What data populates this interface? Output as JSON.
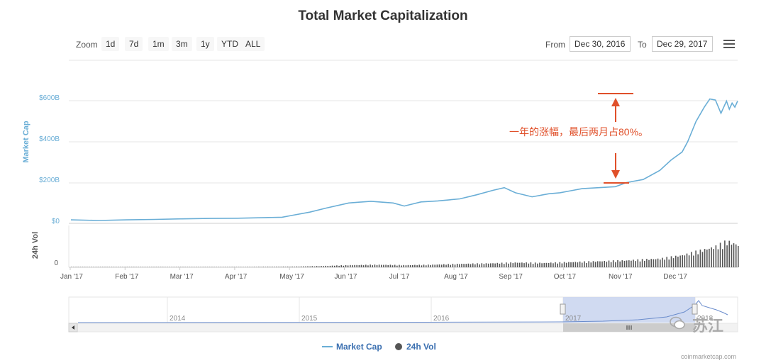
{
  "chart_data": {
    "type": "line",
    "title": "Total Market Capitalization",
    "zoom": {
      "label": "Zoom",
      "buttons": [
        "1d",
        "7d",
        "1m",
        "3m",
        "1y",
        "YTD",
        "ALL"
      ]
    },
    "range": {
      "from_label": "From",
      "from_value": "Dec 30, 2016",
      "to_label": "To",
      "to_value": "Dec 29, 2017"
    },
    "ylabel": "Market Cap",
    "ylabel2": "24h Vol",
    "y_ticks": [
      "$0",
      "$200B",
      "$400B",
      "$600B"
    ],
    "y_tick_values": [
      0,
      200,
      400,
      600
    ],
    "ylim": [
      0,
      700
    ],
    "vol_tick": "0",
    "x_ticks": [
      "Jan '17",
      "Feb '17",
      "Mar '17",
      "Apr '17",
      "May '17",
      "Jun '17",
      "Jul '17",
      "Aug '17",
      "Sep '17",
      "Oct '17",
      "Nov '17",
      "Dec '17"
    ],
    "legend": [
      "Market Cap",
      "24h Vol"
    ],
    "legend_placement": "bottom",
    "series": [
      {
        "name": "Market Cap",
        "color": "#6aaed6",
        "x": [
          0,
          0.5,
          1,
          1.5,
          2,
          2.5,
          3,
          3.5,
          3.8,
          4,
          4.3,
          4.6,
          5,
          5.4,
          5.8,
          6,
          6.3,
          6.6,
          7,
          7.3,
          7.6,
          7.8,
          8,
          8.3,
          8.6,
          8.8,
          9,
          9.2,
          9.5,
          9.8,
          10,
          10.3,
          10.6,
          10.8,
          11,
          11.1,
          11.25,
          11.4,
          11.5,
          11.6,
          11.7,
          11.8,
          11.85,
          11.9,
          11.95,
          12
        ],
        "y": [
          17,
          14,
          17,
          19,
          22,
          24,
          25,
          28,
          30,
          40,
          55,
          75,
          100,
          108,
          100,
          85,
          105,
          110,
          120,
          140,
          162,
          175,
          150,
          130,
          145,
          150,
          160,
          170,
          175,
          180,
          200,
          215,
          260,
          310,
          350,
          400,
          500,
          570,
          610,
          605,
          540,
          600,
          560,
          590,
          570,
          600
        ]
      },
      {
        "name": "24h Vol",
        "color": "#555555",
        "x": [
          0,
          1,
          2,
          3,
          4,
          4.5,
          5,
          5.5,
          6,
          6.5,
          7,
          7.5,
          8,
          8.5,
          9,
          9.5,
          10,
          10.3,
          10.6,
          11,
          11.3,
          11.6,
          11.8,
          12
        ],
        "y": [
          0.5,
          0.5,
          0.6,
          0.8,
          1.5,
          3,
          5,
          6,
          5,
          6,
          8,
          9,
          11,
          10,
          12,
          14,
          16,
          18,
          20,
          28,
          38,
          48,
          60,
          52
        ]
      }
    ],
    "annotations": [
      {
        "text": "一年的涨幅，最后两月占80%。"
      }
    ],
    "navigator": {
      "years": [
        "2014",
        "2015",
        "2016",
        "2017",
        "2018"
      ]
    },
    "credit": "coinmarketcap.com"
  },
  "watermark": "苏江"
}
